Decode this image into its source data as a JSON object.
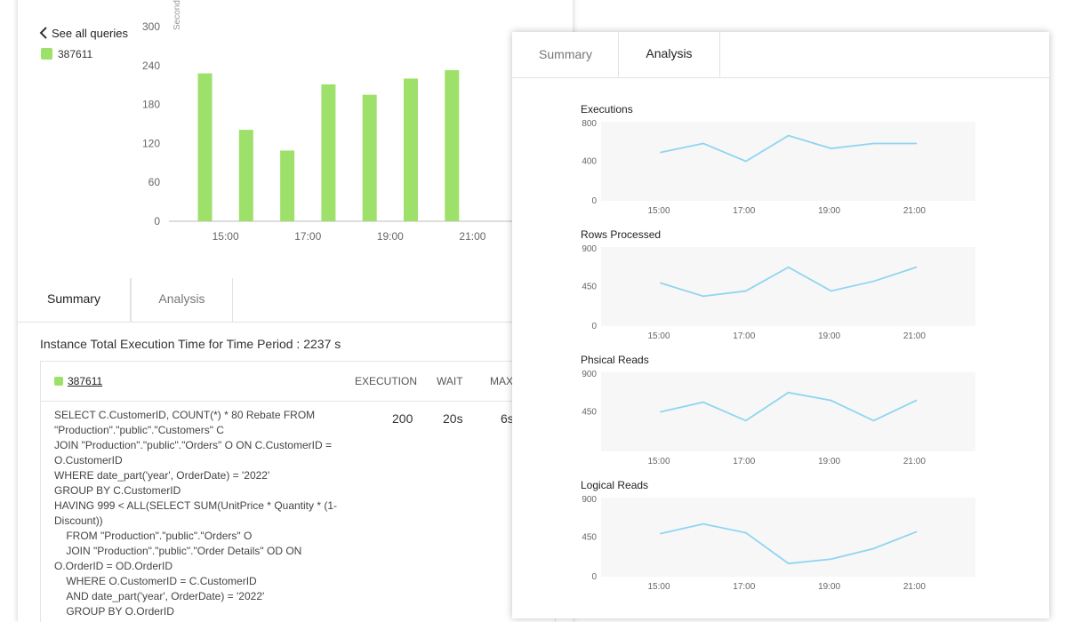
{
  "back_panel": {
    "back_link": "See all queries",
    "legend": "387611",
    "y_axis_unit": "Seconds",
    "tabs": [
      "Summary",
      "Analysis"
    ],
    "active_tab": 0,
    "instance_title": "Instance Total Execution Time for Time Period : 2237 s",
    "table": {
      "query_id": "387611",
      "columns": [
        "EXECUTION",
        "WAIT",
        "MAX"
      ],
      "row": {
        "execution": "200",
        "wait": "20s",
        "max": "6s"
      },
      "sql": "SELECT C.CustomerID, COUNT(*) * 80 Rebate FROM \"Production\".\"public\".\"Customers\" C\nJOIN \"Production\".\"public\".\"Orders\" O ON C.CustomerID = O.CustomerID\nWHERE date_part('year', OrderDate) = '2022'\nGROUP BY C.CustomerID\nHAVING 999 < ALL(SELECT SUM(UnitPrice * Quantity * (1-Discount))\n    FROM \"Production\".\"public\".\"Orders\" O\n    JOIN \"Production\".\"public\".\"Order Details\" OD ON O.OrderID = OD.OrderID\n    WHERE O.CustomerID = C.CustomerID\n    AND date_part('year', OrderDate) = '2022'\n    GROUP BY O.OrderID"
    }
  },
  "front_panel": {
    "tabs": [
      "Summary",
      "Analysis"
    ],
    "active_tab": 1
  },
  "colors": {
    "bar": "#9ee16a",
    "line": "#8fd5f2",
    "plot_bg": "#f7f7f7"
  },
  "chart_data": [
    {
      "type": "bar",
      "series": [
        {
          "name": "387611",
          "values": [
            228,
            141,
            109,
            211,
            195,
            220,
            233
          ]
        }
      ],
      "x": [
        "14:30",
        "15:30",
        "16:30",
        "17:30",
        "18:30",
        "19:30",
        "20:30"
      ],
      "xticks": [
        "15:00",
        "17:00",
        "19:00",
        "21:00"
      ],
      "ylabel": "Seconds",
      "ylim": [
        0,
        300
      ],
      "yticks": [
        0,
        60,
        120,
        180,
        240,
        300
      ]
    },
    {
      "type": "line",
      "title": "Executions",
      "x": [
        0,
        1,
        2,
        3,
        4,
        5,
        6
      ],
      "xticks": [
        "15:00",
        "17:00",
        "19:00",
        "21:00"
      ],
      "values": [
        490,
        580,
        400,
        660,
        530,
        580,
        580
      ],
      "ylim": [
        0,
        800
      ],
      "yticks": [
        0,
        400,
        800
      ]
    },
    {
      "type": "line",
      "title": "Rows Processed",
      "x": [
        0,
        1,
        2,
        3,
        4,
        5,
        6
      ],
      "xticks": [
        "15:00",
        "17:00",
        "19:00",
        "21:00"
      ],
      "values": [
        490,
        340,
        400,
        670,
        400,
        510,
        670
      ],
      "ylim": [
        0,
        900
      ],
      "yticks": [
        0,
        450,
        900
      ]
    },
    {
      "type": "line",
      "title": "Phsical Reads",
      "x": [
        0,
        1,
        2,
        3,
        4,
        5,
        6
      ],
      "xticks": [
        "15:00",
        "17:00",
        "19:00",
        "21:00"
      ],
      "values": [
        450,
        560,
        350,
        670,
        580,
        350,
        580
      ],
      "ylim": [
        0,
        900
      ],
      "yticks": [
        450,
        900
      ]
    },
    {
      "type": "line",
      "title": "Logical Reads",
      "x": [
        0,
        1,
        2,
        3,
        4,
        5,
        6
      ],
      "xticks": [
        "15:00",
        "17:00",
        "19:00",
        "21:00"
      ],
      "values": [
        490,
        600,
        500,
        150,
        200,
        320,
        510
      ],
      "ylim": [
        0,
        900
      ],
      "yticks": [
        0,
        450,
        900
      ]
    }
  ]
}
